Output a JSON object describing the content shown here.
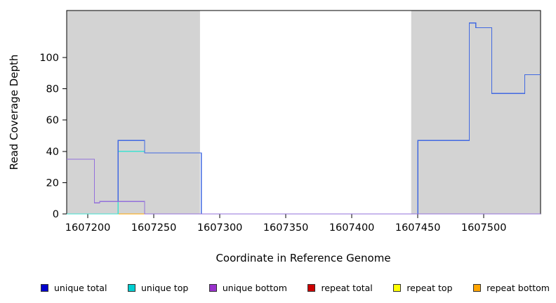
{
  "chart_data": {
    "type": "line",
    "step": true,
    "title": "",
    "xlabel": "Coordinate in Reference Genome",
    "ylabel": "Read Coverage Depth",
    "xlim": [
      1607184,
      1607543
    ],
    "ylim": [
      0,
      130
    ],
    "x_ticks": [
      1607200,
      1607250,
      1607300,
      1607350,
      1607400,
      1607450,
      1607500
    ],
    "y_ticks": [
      0,
      20,
      40,
      60,
      80,
      100
    ],
    "grid": false,
    "plot_background": "#ffffff",
    "shaded_region_color": "#d3d3d3",
    "shaded_regions": [
      {
        "x0": 1607184,
        "x1": 1607285
      },
      {
        "x0": 1607445,
        "x1": 1607543
      }
    ],
    "series": [
      {
        "name": "repeat total",
        "color": "#cc0000",
        "points": [
          [
            1607184,
            0
          ],
          [
            1607543,
            0
          ]
        ]
      },
      {
        "name": "repeat top",
        "color": "#ffff00",
        "points": [
          [
            1607184,
            0
          ],
          [
            1607543,
            0
          ]
        ]
      },
      {
        "name": "repeat bottom",
        "color": "#ffa500",
        "points": [
          [
            1607184,
            0
          ],
          [
            1607543,
            0
          ]
        ]
      },
      {
        "name": "unique top",
        "color": "#40e0d0",
        "points": [
          [
            1607184,
            0
          ],
          [
            1607223,
            0
          ],
          [
            1607223,
            40
          ],
          [
            1607243,
            40
          ],
          [
            1607243,
            39
          ],
          [
            1607286,
            39
          ],
          [
            1607286,
            0
          ],
          [
            1607543,
            0
          ]
        ]
      },
      {
        "name": "unique total",
        "color": "#4169e1",
        "points": [
          [
            1607184,
            35
          ],
          [
            1607205,
            35
          ],
          [
            1607205,
            7
          ],
          [
            1607209,
            7
          ],
          [
            1607209,
            8
          ],
          [
            1607223,
            8
          ],
          [
            1607223,
            47
          ],
          [
            1607243,
            47
          ],
          [
            1607243,
            39
          ],
          [
            1607286,
            39
          ],
          [
            1607286,
            0
          ],
          [
            1607450,
            0
          ],
          [
            1607450,
            47
          ],
          [
            1607489,
            47
          ],
          [
            1607489,
            122
          ],
          [
            1607494,
            122
          ],
          [
            1607494,
            119
          ],
          [
            1607506,
            119
          ],
          [
            1607506,
            77
          ],
          [
            1607531,
            77
          ],
          [
            1607531,
            89
          ],
          [
            1607543,
            89
          ]
        ]
      },
      {
        "name": "unique bottom",
        "color": "#9370db",
        "points": [
          [
            1607184,
            35
          ],
          [
            1607205,
            35
          ],
          [
            1607205,
            7
          ],
          [
            1607209,
            7
          ],
          [
            1607209,
            8
          ],
          [
            1607243,
            8
          ],
          [
            1607243,
            0
          ],
          [
            1607543,
            0
          ]
        ]
      }
    ],
    "legend": [
      {
        "label": "unique total",
        "color": "#0000cc"
      },
      {
        "label": "unique top",
        "color": "#00ced1"
      },
      {
        "label": "unique bottom",
        "color": "#9932cc"
      },
      {
        "label": "repeat total",
        "color": "#cc0000"
      },
      {
        "label": "repeat top",
        "color": "#ffff00"
      },
      {
        "label": "repeat bottom",
        "color": "#ffa500"
      }
    ],
    "legend_position": "bottom"
  }
}
